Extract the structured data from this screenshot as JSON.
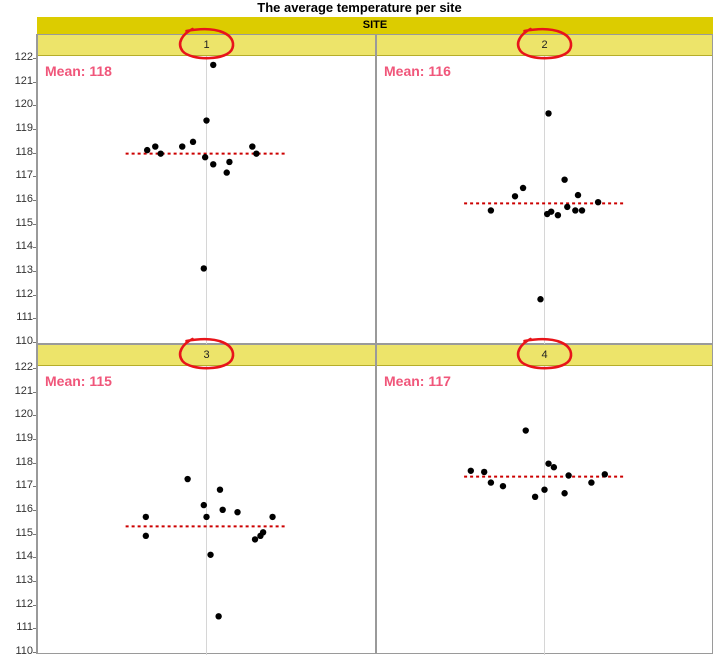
{
  "chart_data": {
    "type": "scatter",
    "title": "The average temperature per site",
    "facet_label": "SITE",
    "ylim": [
      110,
      122
    ],
    "yticks": [
      110,
      111,
      112,
      113,
      114,
      115,
      116,
      117,
      118,
      119,
      120,
      121,
      122
    ],
    "grid": "vertical center line per panel",
    "mean_line_color": "#cc0000",
    "point_color": "#000000",
    "mean_text_color": "#f0567a",
    "panels": [
      {
        "site": "1",
        "mean_label": "Mean: 118",
        "mean_value": 118.0,
        "points": [
          {
            "x": -0.88,
            "y": 118.15
          },
          {
            "x": -0.76,
            "y": 118.3
          },
          {
            "x": -0.68,
            "y": 118.0
          },
          {
            "x": -0.36,
            "y": 118.3
          },
          {
            "x": -0.2,
            "y": 118.5
          },
          {
            "x": -0.02,
            "y": 117.85
          },
          {
            "x": 0.1,
            "y": 117.55
          },
          {
            "x": 0.34,
            "y": 117.65
          },
          {
            "x": 0.3,
            "y": 117.2
          },
          {
            "x": 0.68,
            "y": 118.3
          },
          {
            "x": 0.74,
            "y": 118.0
          },
          {
            "x": 0.0,
            "y": 119.4
          },
          {
            "x": 0.1,
            "y": 121.75
          },
          {
            "x": -0.04,
            "y": 113.15
          }
        ]
      },
      {
        "site": "2",
        "mean_label": "Mean: 116",
        "mean_value": 115.9,
        "points": [
          {
            "x": -0.8,
            "y": 115.6
          },
          {
            "x": -0.44,
            "y": 116.2
          },
          {
            "x": -0.32,
            "y": 116.55
          },
          {
            "x": 0.04,
            "y": 115.45
          },
          {
            "x": 0.1,
            "y": 115.55
          },
          {
            "x": 0.2,
            "y": 115.4
          },
          {
            "x": 0.3,
            "y": 116.9
          },
          {
            "x": 0.34,
            "y": 115.75
          },
          {
            "x": 0.46,
            "y": 115.6
          },
          {
            "x": 0.56,
            "y": 115.6
          },
          {
            "x": 0.5,
            "y": 116.25
          },
          {
            "x": 0.8,
            "y": 115.95
          },
          {
            "x": 0.06,
            "y": 119.7
          },
          {
            "x": -0.06,
            "y": 111.85
          }
        ]
      },
      {
        "site": "3",
        "mean_label": "Mean: 115",
        "mean_value": 115.35,
        "points": [
          {
            "x": -0.9,
            "y": 115.75
          },
          {
            "x": -0.9,
            "y": 114.95
          },
          {
            "x": -0.28,
            "y": 117.35
          },
          {
            "x": -0.04,
            "y": 116.25
          },
          {
            "x": 0.0,
            "y": 115.75
          },
          {
            "x": 0.2,
            "y": 116.9
          },
          {
            "x": 0.24,
            "y": 116.05
          },
          {
            "x": 0.46,
            "y": 115.95
          },
          {
            "x": 0.72,
            "y": 114.8
          },
          {
            "x": 0.8,
            "y": 114.95
          },
          {
            "x": 0.84,
            "y": 115.1
          },
          {
            "x": 0.98,
            "y": 115.75
          },
          {
            "x": 0.06,
            "y": 114.15
          },
          {
            "x": 0.18,
            "y": 111.55
          }
        ]
      },
      {
        "site": "4",
        "mean_label": "Mean: 117",
        "mean_value": 117.45,
        "points": [
          {
            "x": -1.1,
            "y": 117.7
          },
          {
            "x": -0.9,
            "y": 117.65
          },
          {
            "x": -0.8,
            "y": 117.2
          },
          {
            "x": -0.62,
            "y": 117.05
          },
          {
            "x": -0.14,
            "y": 116.6
          },
          {
            "x": 0.0,
            "y": 116.9
          },
          {
            "x": 0.06,
            "y": 118.0
          },
          {
            "x": 0.14,
            "y": 117.85
          },
          {
            "x": 0.3,
            "y": 116.75
          },
          {
            "x": 0.36,
            "y": 117.5
          },
          {
            "x": 0.7,
            "y": 117.2
          },
          {
            "x": 0.9,
            "y": 117.55
          },
          {
            "x": -0.28,
            "y": 119.4
          }
        ]
      }
    ]
  },
  "annotations": {
    "color": "#e8141a",
    "type": "hand-drawn circle around each site number"
  }
}
